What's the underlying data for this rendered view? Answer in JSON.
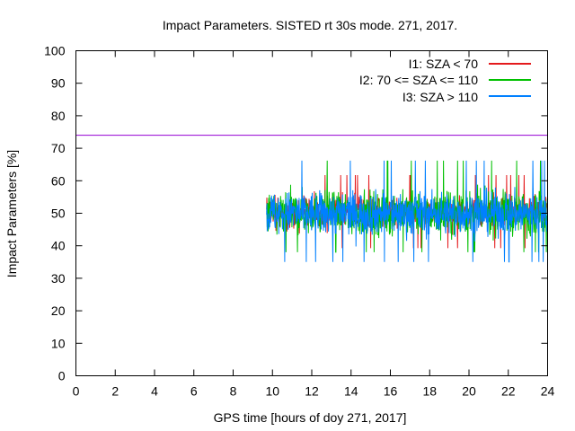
{
  "chart_data": {
    "type": "line",
    "title": "Impact Parameters. SISTED rt 30s mode. 271, 2017.",
    "xlabel": "GPS time [hours of doy 271, 2017]",
    "ylabel": "Impact Parameters [%]",
    "xlim": [
      0,
      24
    ],
    "ylim": [
      0,
      100
    ],
    "xticks": [
      0,
      2,
      4,
      6,
      8,
      10,
      12,
      14,
      16,
      18,
      20,
      22,
      24
    ],
    "yticks": [
      0,
      10,
      20,
      30,
      40,
      50,
      60,
      70,
      80,
      90,
      100
    ],
    "grid": false,
    "legend_position": "top-right",
    "reference_line": {
      "y": 74,
      "color": "#9400d3"
    },
    "series": [
      {
        "name": "I1: SZA < 70",
        "color": "#e41a1c",
        "x_start": 9.7,
        "x_end": 24,
        "mean": 50.5,
        "min": 38,
        "max": 63
      },
      {
        "name": "I2: 70 <= SZA <= 110",
        "color": "#00c000",
        "x_start": 9.7,
        "x_end": 24,
        "mean": 50.0,
        "min": 38,
        "max": 68
      },
      {
        "name": "I3: SZA > 110",
        "color": "#0080ff",
        "x_start": 9.7,
        "x_end": 24,
        "mean": 50.0,
        "min": 35,
        "max": 68
      }
    ]
  }
}
